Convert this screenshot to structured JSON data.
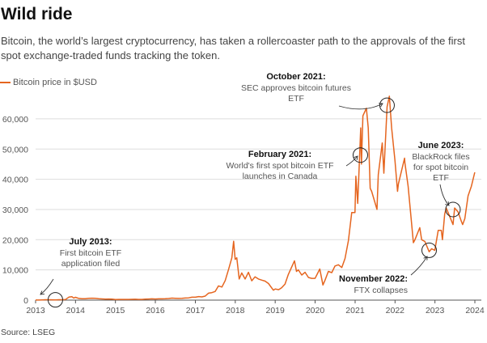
{
  "title": "Wild ride",
  "subtitle": "Bitcoin, the world’s largest cryptocurrency, has taken a rollercoaster path to the approvals of the first spot exchange-traded funds tracking the token.",
  "source": "Source: LSEG",
  "colors": {
    "line": "#e5651f",
    "grid": "#dddddd",
    "axis": "#555555"
  },
  "chart_data": {
    "type": "line",
    "title": "Wild ride",
    "xlabel": "",
    "ylabel": "",
    "xlim": [
      "2013-01-01",
      "2024-01-01"
    ],
    "ylim": [
      0,
      70000
    ],
    "grid": true,
    "legend_placement": "top-left",
    "x_ticks": [
      "2013",
      "2014",
      "2015",
      "2016",
      "2017",
      "2018",
      "2019",
      "2020",
      "2021",
      "2022",
      "2023",
      "2024"
    ],
    "y_ticks": [
      0,
      10000,
      20000,
      30000,
      40000,
      50000,
      60000
    ],
    "y_tick_labels": [
      "0",
      "10,000",
      "20,000",
      "30,000",
      "40,000",
      "50,000",
      "60,000"
    ],
    "series": [
      {
        "name": "Bitcoin price in $USD",
        "x": [
          "2013-01-01",
          "2013-02-01",
          "2013-03-01",
          "2013-04-01",
          "2013-05-01",
          "2013-06-01",
          "2013-07-01",
          "2013-08-01",
          "2013-09-01",
          "2013-10-01",
          "2013-11-01",
          "2013-11-30",
          "2013-12-15",
          "2014-01-01",
          "2014-02-01",
          "2014-03-01",
          "2014-04-01",
          "2014-05-01",
          "2014-06-01",
          "2014-07-01",
          "2014-08-01",
          "2014-09-01",
          "2014-10-01",
          "2014-11-01",
          "2014-12-01",
          "2015-01-01",
          "2015-02-01",
          "2015-03-01",
          "2015-04-01",
          "2015-05-01",
          "2015-06-01",
          "2015-07-01",
          "2015-08-01",
          "2015-09-01",
          "2015-10-01",
          "2015-11-01",
          "2015-12-01",
          "2016-01-01",
          "2016-02-01",
          "2016-03-01",
          "2016-04-01",
          "2016-05-01",
          "2016-06-01",
          "2016-07-01",
          "2016-08-01",
          "2016-09-01",
          "2016-10-01",
          "2016-11-01",
          "2016-12-01",
          "2017-01-01",
          "2017-02-01",
          "2017-03-01",
          "2017-04-01",
          "2017-05-01",
          "2017-06-01",
          "2017-07-01",
          "2017-08-01",
          "2017-09-01",
          "2017-10-01",
          "2017-11-01",
          "2017-12-01",
          "2017-12-17",
          "2017-12-31",
          "2018-01-15",
          "2018-02-06",
          "2018-03-01",
          "2018-04-01",
          "2018-05-01",
          "2018-06-01",
          "2018-07-01",
          "2018-08-01",
          "2018-09-01",
          "2018-10-01",
          "2018-11-01",
          "2018-12-15",
          "2019-01-01",
          "2019-02-01",
          "2019-03-01",
          "2019-04-01",
          "2019-05-01",
          "2019-06-26",
          "2019-07-15",
          "2019-08-01",
          "2019-09-01",
          "2019-10-01",
          "2019-11-01",
          "2019-12-01",
          "2020-01-01",
          "2020-02-13",
          "2020-03-13",
          "2020-04-01",
          "2020-05-01",
          "2020-06-01",
          "2020-07-01",
          "2020-08-01",
          "2020-09-01",
          "2020-10-01",
          "2020-11-01",
          "2020-12-01",
          "2020-12-31",
          "2021-01-08",
          "2021-01-25",
          "2021-02-21",
          "2021-02-28",
          "2021-03-13",
          "2021-04-14",
          "2021-05-01",
          "2021-05-19",
          "2021-06-01",
          "2021-07-20",
          "2021-08-01",
          "2021-09-06",
          "2021-09-21",
          "2021-10-20",
          "2021-11-10",
          "2021-12-01",
          "2021-12-31",
          "2022-01-24",
          "2022-02-01",
          "2022-03-29",
          "2022-04-01",
          "2022-05-01",
          "2022-06-18",
          "2022-07-01",
          "2022-08-15",
          "2022-09-01",
          "2022-10-01",
          "2022-11-09",
          "2022-12-01",
          "2022-12-31",
          "2023-01-31",
          "2023-02-28",
          "2023-03-10",
          "2023-03-31",
          "2023-04-14",
          "2023-05-01",
          "2023-06-15",
          "2023-06-30",
          "2023-07-31",
          "2023-08-31",
          "2023-09-11",
          "2023-10-01",
          "2023-10-31",
          "2023-11-30",
          "2023-12-31"
        ],
        "values": [
          14,
          33,
          93,
          139,
          129,
          97,
          88,
          135,
          133,
          198,
          1000,
          1130,
          700,
          930,
          570,
          450,
          450,
          620,
          640,
          590,
          480,
          390,
          340,
          380,
          320,
          220,
          250,
          245,
          235,
          230,
          265,
          285,
          230,
          235,
          315,
          375,
          430,
          370,
          440,
          415,
          450,
          530,
          670,
          625,
          575,
          610,
          700,
          740,
          960,
          970,
          1190,
          1080,
          1350,
          2300,
          2500,
          2870,
          4700,
          4340,
          6470,
          10230,
          14000,
          19500,
          13500,
          14000,
          7000,
          9000,
          7000,
          9200,
          6400,
          7700,
          7000,
          6600,
          6300,
          5500,
          3300,
          3700,
          3450,
          4100,
          5300,
          8500,
          13000,
          9500,
          10000,
          8300,
          9200,
          7500,
          7200,
          7200,
          10300,
          5000,
          6600,
          9500,
          9100,
          11300,
          11700,
          10800,
          13800,
          19700,
          29000,
          29000,
          41000,
          32000,
          57000,
          45000,
          61000,
          63500,
          57000,
          37000,
          36000,
          30000,
          41500,
          52000,
          42000,
          64000,
          67500,
          57000,
          46300,
          36000,
          38500,
          47000,
          45500,
          37700,
          19000,
          19900,
          24000,
          20000,
          19400,
          16000,
          17000,
          16500,
          23100,
          23100,
          20000,
          28500,
          30500,
          29000,
          25000,
          30500,
          29200,
          26000,
          25000,
          27000,
          34500,
          37700,
          42300
        ]
      }
    ],
    "annotations": [
      {
        "heading": "July 2013:",
        "lines": [
          "First bitcoin ETF",
          "application filed"
        ],
        "date": "2013-07-01",
        "value": 100
      },
      {
        "heading": "February 2021:",
        "lines": [
          "World's first spot bitcoin ETF",
          "launches in Canada"
        ],
        "date": "2021-02-18",
        "value": 48000
      },
      {
        "heading": "October 2021:",
        "lines": [
          "SEC approves bitcoin futures",
          "ETF"
        ],
        "date": "2021-10-20",
        "value": 64500
      },
      {
        "heading": "November 2022:",
        "lines": [
          "FTX collapses"
        ],
        "date": "2022-11-09",
        "value": 16500
      },
      {
        "heading": "June 2023:",
        "lines": [
          "BlackRock files",
          "for spot bitcoin",
          "ETF"
        ],
        "date": "2023-06-15",
        "value": 30000
      }
    ]
  }
}
